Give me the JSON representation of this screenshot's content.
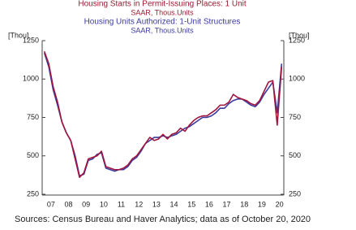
{
  "chart_data": {
    "type": "line",
    "categories": [
      null,
      "07",
      null,
      null,
      null,
      "08",
      null,
      null,
      null,
      "09",
      null,
      null,
      null,
      "10",
      null,
      null,
      null,
      "11",
      null,
      null,
      null,
      "12",
      null,
      null,
      null,
      "13",
      null,
      null,
      null,
      "14",
      null,
      null,
      null,
      "15",
      null,
      null,
      null,
      "16",
      null,
      null,
      null,
      "17",
      null,
      null,
      null,
      "18",
      null,
      null,
      null,
      "19",
      null,
      null,
      null,
      "20",
      null
    ],
    "series": [
      {
        "name": "Housing Starts in Permit-Issuing Places: 1 Unit",
        "units": "SAAR, Thous.Units",
        "color": "#a0153e",
        "values": [
          1180,
          1100,
          950,
          850,
          720,
          650,
          600,
          480,
          360,
          390,
          480,
          490,
          500,
          530,
          430,
          420,
          410,
          410,
          420,
          440,
          480,
          500,
          540,
          580,
          620,
          600,
          610,
          640,
          610,
          640,
          650,
          680,
          660,
          700,
          730,
          750,
          760,
          760,
          780,
          800,
          830,
          830,
          850,
          900,
          880,
          870,
          860,
          840,
          830,
          860,
          920,
          980,
          990,
          700,
          1080
        ]
      },
      {
        "name": "Housing Units Authorized: 1-Unit Structures",
        "units": "SAAR, Thous.Units",
        "color": "#3c3c9e",
        "values": [
          1170,
          1080,
          930,
          830,
          720,
          650,
          600,
          500,
          370,
          380,
          470,
          480,
          510,
          520,
          420,
          410,
          400,
          410,
          410,
          430,
          470,
          490,
          530,
          580,
          600,
          620,
          620,
          630,
          620,
          630,
          640,
          660,
          680,
          690,
          710,
          730,
          750,
          750,
          760,
          780,
          810,
          810,
          840,
          860,
          870,
          870,
          850,
          830,
          820,
          850,
          900,
          940,
          980,
          780,
          1100
        ]
      }
    ],
    "y_axis_label": "[Thou]",
    "y2_axis_label": "[Thou]",
    "ylim": [
      250,
      1250
    ],
    "yticks": [
      250,
      500,
      750,
      1000,
      1250
    ],
    "y2lim": [
      250,
      1250
    ],
    "y2ticks": [
      250,
      500,
      750,
      1000,
      1250
    ],
    "source": "Sources: Census Bureau and Haver Analytics; data as of October 20, 2020"
  }
}
